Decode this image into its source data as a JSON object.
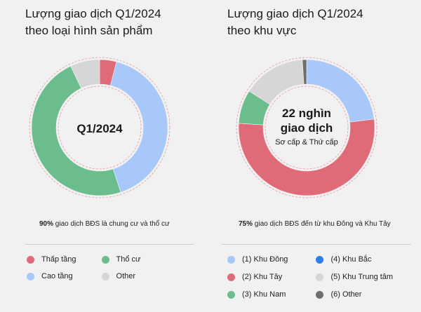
{
  "left_panel": {
    "title_line1": "Lượng giao dịch Q1/2024",
    "title_line2": "theo loại hình sản phẩm",
    "note_bold": "90%",
    "note_rest": " giao dịch BĐS là chung cư và thổ cư"
  },
  "right_panel": {
    "title_line1": "Lượng giao dịch Q1/2024",
    "title_line2": "theo khu vực",
    "note_bold": "75%",
    "note_rest": " giao dịch BĐS đến từ khu Đông và Khu Tây"
  },
  "chart_data": [
    {
      "type": "pie",
      "title": "Lượng giao dịch Q1/2024 theo loại hình sản phẩm",
      "center_label": "Q1/2024",
      "categories": [
        "Thấp tầng",
        "Cao tầng",
        "Thổ cư",
        "Other"
      ],
      "values": [
        4,
        41,
        48,
        7
      ],
      "colors": [
        "#e06b78",
        "#a9c8fa",
        "#6bbd8d",
        "#d6d6d6"
      ],
      "legend": [
        {
          "label": "Thấp tầng",
          "color": "#e06b78"
        },
        {
          "label": "Thổ cư",
          "color": "#6bbd8d"
        },
        {
          "label": "Cao tầng",
          "color": "#a9c8fa"
        },
        {
          "label": "Other",
          "color": "#d6d6d6"
        }
      ]
    },
    {
      "type": "pie",
      "title": "Lượng giao dịch Q1/2024 theo khu vực",
      "center_label_line1": "22 nghìn",
      "center_label_line2": "giao dịch",
      "center_label_line3": "Sơ cấp & Thứ cấp",
      "categories": [
        "(1) Khu Đông",
        "(2) Khu Tây",
        "(3) Khu Nam",
        "(5) Khu Trung tâm",
        "(6) Other"
      ],
      "values": [
        23,
        53,
        8,
        15,
        1
      ],
      "colors": [
        "#a9c8fa",
        "#e06b78",
        "#6bbd8d",
        "#d6d6d6",
        "#6e6e6e"
      ],
      "legend": [
        {
          "label": "(1) Khu Đông",
          "color": "#a9c8fa"
        },
        {
          "label": "(4) Khu Bắc",
          "color": "#2e7ee8"
        },
        {
          "label": "(2) Khu Tây",
          "color": "#e06b78"
        },
        {
          "label": "(5) Khu Trung tâm",
          "color": "#d6d6d6"
        },
        {
          "label": "(3) Khu Nam",
          "color": "#6bbd8d"
        },
        {
          "label": "(6) Other",
          "color": "#6e6e6e"
        }
      ]
    }
  ]
}
